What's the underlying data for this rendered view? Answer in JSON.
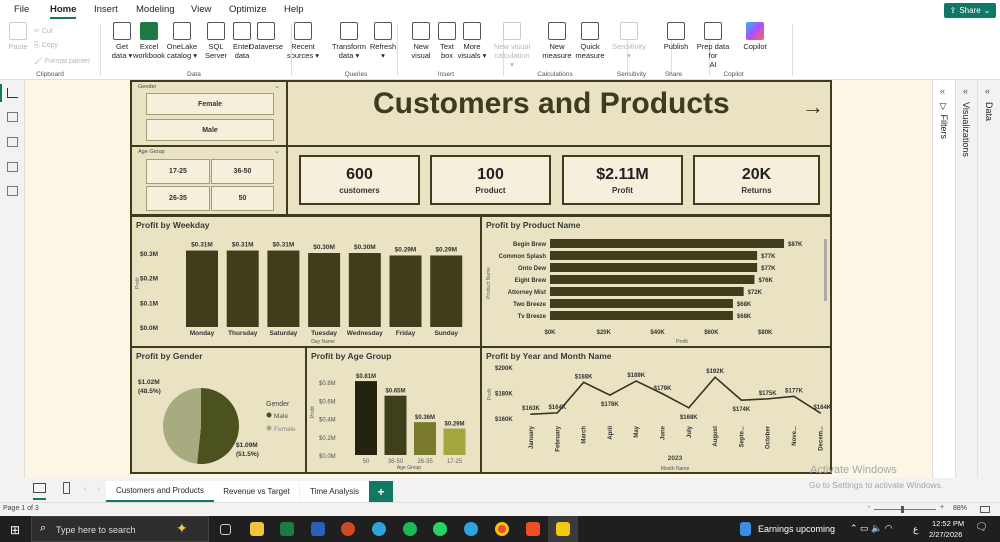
{
  "menu": {
    "items": [
      "File",
      "Home",
      "Insert",
      "Modeling",
      "View",
      "Optimize",
      "Help"
    ],
    "active": "Home",
    "share": "Share"
  },
  "ribbon": {
    "clipboard": {
      "paste": "Paste",
      "cut": "Cut",
      "copy": "Copy",
      "format_painter": "Format painter",
      "group": "Clipboard"
    },
    "data": {
      "items": [
        [
          "Get",
          "data ▾"
        ],
        [
          "Excel",
          "workbook"
        ],
        [
          "OneLake",
          "catalog ▾"
        ],
        [
          "SQL",
          "Server"
        ],
        [
          "Enter",
          "data"
        ],
        [
          "Dataverse",
          ""
        ],
        [
          "Recent",
          "sources ▾"
        ]
      ],
      "group": "Data"
    },
    "queries": {
      "items": [
        [
          "Transform",
          "data ▾"
        ],
        [
          "Refresh",
          "▾"
        ]
      ],
      "group": "Queries"
    },
    "insert": {
      "items": [
        [
          "New",
          "visual"
        ],
        [
          "Text",
          "box"
        ],
        [
          "More",
          "visuals ▾"
        ]
      ],
      "group": "Insert"
    },
    "calculations": {
      "items": [
        [
          "New visual",
          "calculation ▾"
        ],
        [
          "New",
          "measure"
        ],
        [
          "Quick",
          "measure"
        ]
      ],
      "group": "Calculations"
    },
    "sensitivity": {
      "items": [
        [
          "Sensitivity",
          "▾"
        ]
      ],
      "group": "Sensitivity"
    },
    "share": {
      "items": [
        [
          "Publish",
          ""
        ]
      ],
      "group": "Share"
    },
    "copilot": {
      "items": [
        [
          "Prep data for",
          "AI"
        ],
        [
          "Copilot",
          ""
        ]
      ],
      "group": "Copilot"
    }
  },
  "report": {
    "title": "Customers and Products",
    "gender_slicer": {
      "label": "Gender",
      "options": [
        "Female",
        "Male"
      ]
    },
    "age_slicer": {
      "label": "Age Group",
      "options": [
        "17-25",
        "36-50",
        "26-35",
        "50"
      ]
    },
    "kpis": [
      {
        "value": "600",
        "label": "customers"
      },
      {
        "value": "100",
        "label": "Product"
      },
      {
        "value": "$2.11M",
        "label": "Profit"
      },
      {
        "value": "20K",
        "label": "Returns"
      }
    ]
  },
  "colors": {
    "dark": "#3e3b20",
    "bar": "#3f3d1c",
    "panel": "#e9e2c3",
    "male": "#4c5120",
    "female": "#a8ab80",
    "accent": "#117865"
  },
  "chart_data": [
    {
      "id": "weekday",
      "type": "bar",
      "title": "Profit by Weekday",
      "xlabel": "Day Name",
      "ylabel": "Profit",
      "categories": [
        "Monday",
        "Thursday",
        "Saturday",
        "Tuesday",
        "Wednesday",
        "Friday",
        "Sunday"
      ],
      "values": [
        0.31,
        0.31,
        0.31,
        0.3,
        0.3,
        0.29,
        0.29
      ],
      "data_labels": [
        "$0.31M",
        "$0.31M",
        "$0.31M",
        "$0.30M",
        "$0.30M",
        "$0.29M",
        "$0.29M"
      ],
      "yticks": [
        "$0.0M",
        "$0.1M",
        "$0.2M",
        "$0.3M"
      ],
      "ylim": [
        0,
        0.3
      ]
    },
    {
      "id": "product",
      "type": "bar",
      "orientation": "horizontal",
      "title": "Profit by Product Name",
      "xlabel": "Profit",
      "ylabel": "Product Name",
      "categories": [
        "Begin Brew",
        "Common Splash",
        "Onto Dew",
        "Eight Brew",
        "Attorney Mist",
        "Two Breeze",
        "Tv Breeze"
      ],
      "values": [
        87,
        77,
        77,
        76,
        72,
        68,
        68
      ],
      "data_labels": [
        "$87K",
        "$77K",
        "$77K",
        "$76K",
        "$72K",
        "$68K",
        "$68K"
      ],
      "xticks": [
        "$0K",
        "$20K",
        "$40K",
        "$60K",
        "$80K"
      ],
      "xlim": [
        0,
        80
      ]
    },
    {
      "id": "gender",
      "type": "pie",
      "title": "Profit by Gender",
      "legend_title": "Gender",
      "categories": [
        "Male",
        "Female"
      ],
      "values": [
        1.09,
        1.02
      ],
      "percents": [
        51.5,
        48.5
      ],
      "data_labels": [
        "$1.09M\n(51.5%)",
        "$1.02M\n(48.5%)"
      ],
      "legend": "right"
    },
    {
      "id": "age",
      "type": "bar",
      "title": "Profit by Age Group",
      "xlabel": "Age Group",
      "ylabel": "Profit",
      "categories": [
        "50",
        "36-50",
        "26-35",
        "17-25"
      ],
      "values": [
        0.81,
        0.65,
        0.36,
        0.29
      ],
      "data_labels": [
        "$0.81M",
        "$0.65M",
        "$0.36M",
        "$0.29M"
      ],
      "yticks": [
        "$0.0M",
        "$0.2M",
        "$0.4M",
        "$0.6M",
        "$0.8M"
      ],
      "ylim": [
        0,
        0.8
      ],
      "bar_colors": [
        "#23230f",
        "#3f3f1c",
        "#7a7a2c",
        "#a3a63e"
      ]
    },
    {
      "id": "month",
      "type": "line",
      "title": "Profit by Year and Month Name",
      "xlabel": "Month Name",
      "ylabel": "Profit",
      "year_label": "2023",
      "categories": [
        "January",
        "February",
        "March",
        "April",
        "May",
        "June",
        "July",
        "August",
        "Septe...",
        "October",
        "Nove...",
        "Decem..."
      ],
      "values": [
        163,
        164,
        188,
        178,
        189,
        179,
        168,
        192,
        174,
        175,
        177,
        164
      ],
      "data_labels": [
        "$163K",
        "$164K",
        "$188K",
        "$178K",
        "$189K",
        "$179K",
        "$168K",
        "$192K",
        "$174K",
        "$175K",
        "$177K",
        "$164K"
      ],
      "yticks": [
        "$160K",
        "$180K",
        "$200K"
      ],
      "ylim": [
        160,
        200
      ]
    }
  ],
  "right_panels": [
    "Filters",
    "Visualizations",
    "Data"
  ],
  "page_tabs": [
    "Customers and Products",
    "Revenue vs Target",
    "Time Analysis"
  ],
  "add_page": "+",
  "status": {
    "page": "Page 1 of 3",
    "zoom": "88%",
    "zoom_level": 88,
    "watermark1": "Activate Windows",
    "watermark2": "Go to Settings to activate Windows."
  },
  "taskbar": {
    "search_placeholder": "Type here to search",
    "news": "Earnings upcoming",
    "time": "12:52 PM",
    "date": "2/27/2026",
    "lang": "ع",
    "notif": "1"
  }
}
